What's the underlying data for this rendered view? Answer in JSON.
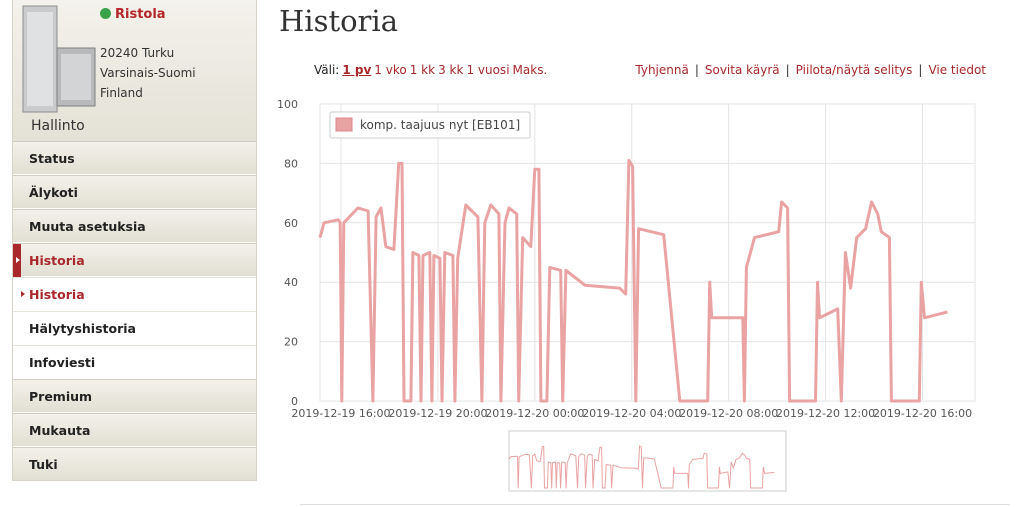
{
  "sidebar": {
    "name": "Ristola",
    "address": [
      "20240 Turku",
      "Varsinais-Suomi",
      "Finland"
    ],
    "caption": "Hallinto",
    "menu": [
      "Status",
      "Älykoti",
      "Muuta asetuksia",
      "Historia",
      "Historia",
      "Hälytyshistoria",
      "Infoviesti",
      "Premium",
      "Mukauta",
      "Tuki"
    ]
  },
  "header": {
    "title": "Historia"
  },
  "range": {
    "label": "Väli:",
    "options": [
      "1 pv",
      "1 vko",
      "1 kk",
      "3 kk",
      "1 vuosi",
      "Maks."
    ]
  },
  "actions": [
    "Tyhjennä",
    "Sovita käyrä",
    "Piilota/näytä selitys",
    "Vie tiedot"
  ],
  "chart_data": {
    "type": "line",
    "x": [
      "2019-12-19 15:08",
      "2019-12-19 15:18",
      "2019-12-19 15:53",
      "2019-12-19 15:58",
      "2019-12-19 16:02",
      "2019-12-19 16:07",
      "2019-12-19 16:42",
      "2019-12-19 17:07",
      "2019-12-19 17:19",
      "2019-12-19 17:27",
      "2019-12-19 17:39",
      "2019-12-19 17:51",
      "2019-12-19 18:11",
      "2019-12-19 18:23",
      "2019-12-19 18:31",
      "2019-12-19 18:36",
      "2019-12-19 18:53",
      "2019-12-19 18:58",
      "2019-12-19 19:13",
      "2019-12-19 19:18",
      "2019-12-19 19:23",
      "2019-12-19 19:40",
      "2019-12-19 19:45",
      "2019-12-19 19:50",
      "2019-12-19 20:05",
      "2019-12-19 20:10",
      "2019-12-19 20:17",
      "2019-12-19 20:37",
      "2019-12-19 20:42",
      "2019-12-19 20:49",
      "2019-12-19 21:09",
      "2019-12-19 21:39",
      "2019-12-19 21:49",
      "2019-12-19 21:56",
      "2019-12-19 22:11",
      "2019-12-19 22:31",
      "2019-12-19 22:36",
      "2019-12-19 22:46",
      "2019-12-19 22:56",
      "2019-12-19 23:15",
      "2019-12-19 23:20",
      "2019-12-19 23:30",
      "2019-12-19 23:50",
      "2019-12-20 00:00",
      "2019-12-20 00:10",
      "2019-12-20 00:15",
      "2019-12-20 00:30",
      "2019-12-20 00:37",
      "2019-12-20 01:04",
      "2019-12-20 01:09",
      "2019-12-20 01:17",
      "2019-12-20 02:04",
      "2019-12-20 03:30",
      "2019-12-20 03:45",
      "2019-12-20 03:53",
      "2019-12-20 04:02",
      "2019-12-20 04:10",
      "2019-12-20 04:17",
      "2019-12-20 05:19",
      "2019-12-20 05:59",
      "2019-12-20 07:08",
      "2019-12-20 07:13",
      "2019-12-20 07:18",
      "2019-12-20 08:35",
      "2019-12-20 08:39",
      "2019-12-20 08:44",
      "2019-12-20 09:04",
      "2019-12-20 10:04",
      "2019-12-20 10:11",
      "2019-12-20 10:26",
      "2019-12-20 10:31",
      "2019-12-20 11:35",
      "2019-12-20 11:40",
      "2019-12-20 11:45",
      "2019-12-20 12:30",
      "2019-12-20 12:39",
      "2019-12-20 12:49",
      "2019-12-20 13:02",
      "2019-12-20 13:17",
      "2019-12-20 13:39",
      "2019-12-20 13:54",
      "2019-12-20 14:09",
      "2019-12-20 14:18",
      "2019-12-20 14:38",
      "2019-12-20 14:43",
      "2019-12-20 15:52",
      "2019-12-20 15:57",
      "2019-12-20 16:05",
      "2019-12-20 17:02"
    ],
    "series": [
      {
        "name": "komp. taajuus nyt [EB101]",
        "color": "#e9a3a3",
        "values": [
          55,
          60,
          61,
          60,
          0,
          60,
          65,
          64,
          0,
          62,
          65,
          52,
          51,
          80,
          80,
          0,
          0,
          50,
          49,
          0,
          49,
          50,
          0,
          49,
          48,
          0,
          50,
          49,
          0,
          48,
          66,
          62,
          0,
          60,
          66,
          63,
          0,
          60,
          65,
          63,
          0,
          55,
          52,
          78,
          78,
          0,
          0,
          45,
          44,
          0,
          44,
          39,
          38,
          36,
          81,
          79,
          0,
          58,
          56,
          0,
          0,
          40,
          28,
          28,
          0,
          45,
          55,
          57,
          67,
          65,
          0,
          0,
          40,
          28,
          31,
          0,
          50,
          38,
          55,
          58,
          67,
          63,
          57,
          55,
          0,
          0,
          40,
          28,
          30
        ]
      }
    ],
    "xlim": [
      "2019-12-19 15:08",
      "2019-12-20 18:10"
    ],
    "xticks": [
      "2019-12-19 16:00",
      "2019-12-19 20:00",
      "2019-12-20 00:00",
      "2019-12-20 04:00",
      "2019-12-20 08:00",
      "2019-12-20 12:00",
      "2019-12-20 16:00"
    ],
    "ylim": [
      0,
      100
    ],
    "yticks": [
      0,
      20,
      40,
      60,
      80,
      100
    ],
    "grid": true,
    "legend": "upper left"
  }
}
